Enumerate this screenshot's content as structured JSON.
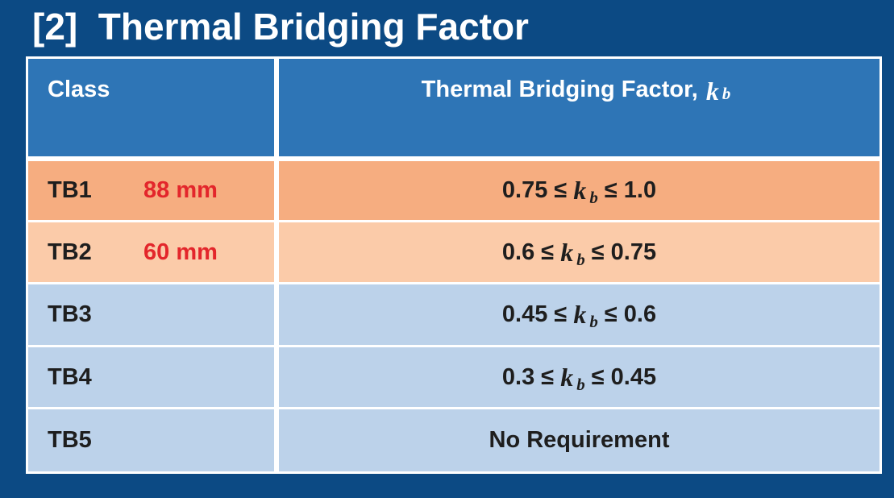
{
  "title": "[2]  Thermal Bridging Factor",
  "table": {
    "header": {
      "class": "Class",
      "factor": "Thermal Bridging Factor,",
      "symbol": "k",
      "subscript": "b"
    },
    "rows": [
      {
        "class": "TB1",
        "note": "88 mm",
        "low": "0.75 ≤",
        "high": "≤ 1.0"
      },
      {
        "class": "TB2",
        "note": "60 mm",
        "low": "0.6 ≤",
        "high": "≤ 0.75"
      },
      {
        "class": "TB3",
        "low": "0.45 ≤",
        "high": "≤ 0.6"
      },
      {
        "class": "TB4",
        "low": "0.3 ≤",
        "high": "≤ 0.45"
      },
      {
        "class": "TB5",
        "text": "No Requirement"
      }
    ]
  }
}
